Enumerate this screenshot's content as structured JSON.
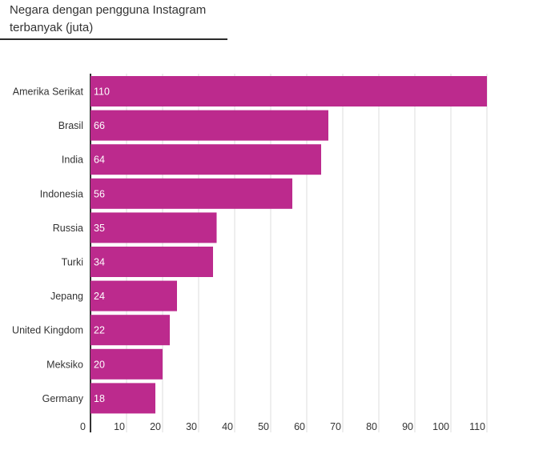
{
  "chart_data": {
    "type": "bar",
    "orientation": "horizontal",
    "title": "Negara dengan pengguna Instagram terbanyak (juta)",
    "categories": [
      "Amerika Serikat",
      "Brasil",
      "India",
      "Indonesia",
      "Russia",
      "Turki",
      "Jepang",
      "United Kingdom",
      "Meksiko",
      "Germany"
    ],
    "values": [
      110,
      66,
      64,
      56,
      35,
      34,
      24,
      22,
      20,
      18
    ],
    "value_labels": [
      "110",
      "66",
      "64",
      "56",
      "35",
      "34",
      "24",
      "22",
      "20",
      "18"
    ],
    "xticks": [
      0,
      10,
      20,
      30,
      40,
      50,
      60,
      70,
      80,
      90,
      100,
      110
    ],
    "xtick_labels": [
      "0",
      "10",
      "20",
      "30",
      "40",
      "50",
      "60",
      "70",
      "80",
      "90",
      "100",
      "110"
    ],
    "xlim": [
      0,
      110
    ],
    "grid": "vertical",
    "bar_color": "#bc2a8d",
    "grid_color": "#dddddd",
    "axis_color": "#333333"
  }
}
